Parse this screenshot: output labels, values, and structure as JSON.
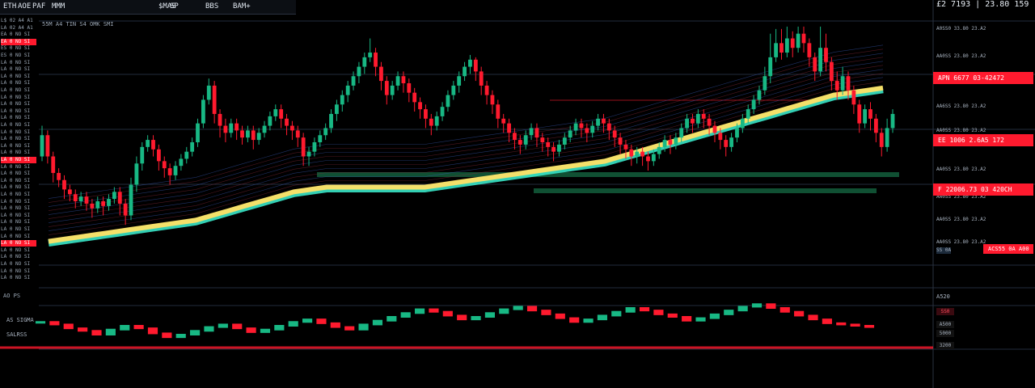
{
  "toolbar": {
    "items": [
      "ETH",
      "AOE",
      "PAF",
      "MMM",
      "$MAS",
      "SP",
      "BBS",
      "BAM+"
    ]
  },
  "header_row": "55M A4   TIN S4 OMK SMI",
  "top_right_readout": "£2 7193 | 23.80  159",
  "watchlist": [
    "L$ 02 A4 A1",
    "LA 02 A4 A1",
    "EA 0 NO SI",
    "EA 0 NO SI",
    "ES 0 NO SI",
    "ES 0 NO SI",
    "LA 0 NO SI",
    "LA 0 NO SI",
    "LA 0 NO SI",
    "LA 0 NO SI",
    "LA 0 NO SI",
    "LA 0 NO SI",
    "LA 0 NO SI",
    "LA 0 NO SI",
    "LA 0 NO SI",
    "LA 0 NO SI",
    "LA 0 NO SI",
    "LA 0 NO SI",
    "LA 0 NO SI",
    "LA 0 NO SI",
    "LA 0 NO SI",
    "LA 0 NO SI",
    "LA 0 NO SI",
    "LA 0 NO SI",
    "LA 0 NO SI",
    "LA 0 NO SI",
    "LA 0 NO SI",
    "LA 0 NO SI",
    "LA 0 NO SI",
    "LA 0 NO SI",
    "LA 0 NO SI",
    "LA 0 NO SI",
    "LA 0 NO SI",
    "LA 0 NO SI",
    "LA 0 NO SI",
    "LA 0 NO SI",
    "LA 0 NO SI",
    "LA 0 NO SI"
  ],
  "watch_highlight_rows": [
    3,
    20,
    32
  ],
  "axis_labels": [
    "A0SS0 33.80 23.A2",
    "AA0SS 23.80 23.A2",
    "AA6SS 23.80 23.A2",
    "AA0SS 23.80 23.A2",
    "AA0SS 23.80 23.A2",
    "AA0SS 23.80 23.A2",
    "AA0SS 23.80 23.A2",
    "AA0SS 23.80 23.A2"
  ],
  "axis_tags": [
    "APN 6677 03-42472",
    "EE 1006 2.6A5  172",
    "F 22006.73 03 420CH",
    "ACS55 0A A00"
  ],
  "axis_small_tag": "SS 0A",
  "sub_left": "AO PS",
  "sub_labels": [
    "AS SIGMA",
    "SALRSS",
    "A520"
  ],
  "sub_tags": [
    "SS0",
    "A500",
    "5000",
    "3200"
  ],
  "colors": {
    "bull": "#18b884",
    "bear": "#ff1a2e",
    "ribbon_yellow": "#ffe066",
    "ribbon_cyan": "#39e6c8",
    "band_green": "#135e3c",
    "grid": "#3a4a66"
  },
  "chart_data": {
    "type": "candlestick",
    "title": "",
    "xlabel": "",
    "ylabel": "",
    "ylim": [
      0,
      100
    ],
    "candles": [
      [
        44,
        53,
        42,
        57
      ],
      [
        53,
        44,
        41,
        55
      ],
      [
        44,
        37,
        33,
        46
      ],
      [
        37,
        34,
        31,
        39
      ],
      [
        34,
        30,
        26,
        36
      ],
      [
        30,
        28,
        25,
        32
      ],
      [
        28,
        25,
        22,
        30
      ],
      [
        25,
        27,
        23,
        29
      ],
      [
        27,
        24,
        21,
        29
      ],
      [
        24,
        22,
        18,
        26
      ],
      [
        22,
        25,
        20,
        27
      ],
      [
        25,
        23,
        19,
        27
      ],
      [
        23,
        26,
        21,
        28
      ],
      [
        26,
        29,
        24,
        31
      ],
      [
        29,
        24,
        19,
        31
      ],
      [
        24,
        19,
        15,
        26
      ],
      [
        19,
        32,
        17,
        35
      ],
      [
        32,
        41,
        29,
        44
      ],
      [
        41,
        48,
        38,
        50
      ],
      [
        48,
        51,
        46,
        53
      ],
      [
        51,
        47,
        44,
        53
      ],
      [
        47,
        42,
        38,
        49
      ],
      [
        42,
        39,
        35,
        44
      ],
      [
        39,
        36,
        32,
        41
      ],
      [
        36,
        40,
        34,
        42
      ],
      [
        40,
        43,
        38,
        45
      ],
      [
        43,
        46,
        41,
        48
      ],
      [
        46,
        50,
        44,
        52
      ],
      [
        50,
        58,
        48,
        60
      ],
      [
        58,
        68,
        56,
        70
      ],
      [
        68,
        74,
        66,
        77
      ],
      [
        74,
        62,
        58,
        76
      ],
      [
        62,
        57,
        52,
        64
      ],
      [
        57,
        54,
        50,
        60
      ],
      [
        54,
        58,
        52,
        60
      ],
      [
        58,
        55,
        51,
        60
      ],
      [
        55,
        52,
        49,
        57
      ],
      [
        52,
        55,
        50,
        57
      ],
      [
        55,
        51,
        47,
        57
      ],
      [
        51,
        54,
        49,
        56
      ],
      [
        54,
        57,
        52,
        59
      ],
      [
        57,
        61,
        55,
        63
      ],
      [
        61,
        64,
        59,
        66
      ],
      [
        64,
        60,
        56,
        66
      ],
      [
        60,
        57,
        53,
        62
      ],
      [
        57,
        55,
        51,
        59
      ],
      [
        55,
        52,
        48,
        57
      ],
      [
        52,
        44,
        40,
        54
      ],
      [
        44,
        46,
        40,
        48
      ],
      [
        46,
        50,
        44,
        52
      ],
      [
        50,
        53,
        48,
        55
      ],
      [
        53,
        56,
        51,
        58
      ],
      [
        56,
        62,
        54,
        64
      ],
      [
        62,
        66,
        59,
        68
      ],
      [
        66,
        70,
        63,
        72
      ],
      [
        70,
        74,
        67,
        76
      ],
      [
        74,
        78,
        72,
        80
      ],
      [
        78,
        82,
        75,
        84
      ],
      [
        82,
        86,
        79,
        88
      ],
      [
        86,
        88,
        84,
        94
      ],
      [
        88,
        82,
        78,
        90
      ],
      [
        82,
        76,
        72,
        84
      ],
      [
        76,
        70,
        66,
        78
      ],
      [
        70,
        74,
        68,
        76
      ],
      [
        74,
        78,
        72,
        80
      ],
      [
        78,
        75,
        71,
        80
      ],
      [
        75,
        71,
        67,
        77
      ],
      [
        71,
        67,
        63,
        73
      ],
      [
        67,
        64,
        60,
        69
      ],
      [
        64,
        60,
        56,
        66
      ],
      [
        60,
        57,
        53,
        62
      ],
      [
        57,
        61,
        55,
        63
      ],
      [
        61,
        65,
        59,
        67
      ],
      [
        65,
        70,
        63,
        72
      ],
      [
        70,
        74,
        68,
        76
      ],
      [
        74,
        78,
        71,
        80
      ],
      [
        78,
        82,
        76,
        84
      ],
      [
        82,
        85,
        79,
        87
      ],
      [
        85,
        80,
        76,
        86
      ],
      [
        80,
        74,
        70,
        82
      ],
      [
        74,
        70,
        66,
        76
      ],
      [
        70,
        66,
        62,
        72
      ],
      [
        66,
        60,
        56,
        68
      ],
      [
        60,
        58,
        54,
        62
      ],
      [
        58,
        54,
        50,
        60
      ],
      [
        54,
        51,
        47,
        56
      ],
      [
        51,
        49,
        45,
        53
      ],
      [
        49,
        53,
        47,
        55
      ],
      [
        53,
        56,
        51,
        58
      ],
      [
        56,
        52,
        48,
        58
      ],
      [
        52,
        50,
        46,
        54
      ],
      [
        50,
        48,
        44,
        52
      ],
      [
        48,
        46,
        42,
        50
      ],
      [
        46,
        49,
        44,
        51
      ],
      [
        49,
        52,
        47,
        54
      ],
      [
        52,
        55,
        50,
        57
      ],
      [
        55,
        58,
        53,
        60
      ],
      [
        58,
        56,
        52,
        60
      ],
      [
        56,
        54,
        50,
        58
      ],
      [
        54,
        57,
        52,
        59
      ],
      [
        57,
        60,
        55,
        62
      ],
      [
        60,
        58,
        54,
        62
      ],
      [
        58,
        55,
        51,
        60
      ],
      [
        55,
        52,
        48,
        57
      ],
      [
        52,
        49,
        45,
        54
      ],
      [
        49,
        47,
        43,
        51
      ],
      [
        47,
        44,
        40,
        49
      ],
      [
        44,
        46,
        41,
        48
      ],
      [
        46,
        44,
        40,
        48
      ],
      [
        44,
        42,
        38,
        46
      ],
      [
        42,
        45,
        40,
        47
      ],
      [
        45,
        48,
        43,
        50
      ],
      [
        48,
        51,
        46,
        53
      ],
      [
        51,
        49,
        45,
        53
      ],
      [
        49,
        52,
        47,
        54
      ],
      [
        52,
        56,
        50,
        58
      ],
      [
        56,
        60,
        54,
        62
      ],
      [
        60,
        58,
        54,
        62
      ],
      [
        58,
        62,
        56,
        64
      ],
      [
        62,
        60,
        56,
        64
      ],
      [
        60,
        57,
        53,
        62
      ],
      [
        57,
        54,
        50,
        59
      ],
      [
        54,
        51,
        47,
        56
      ],
      [
        51,
        48,
        44,
        53
      ],
      [
        48,
        52,
        46,
        54
      ],
      [
        52,
        56,
        50,
        58
      ],
      [
        56,
        60,
        54,
        62
      ],
      [
        60,
        64,
        58,
        66
      ],
      [
        64,
        68,
        62,
        70
      ],
      [
        68,
        72,
        66,
        74
      ],
      [
        72,
        78,
        70,
        82
      ],
      [
        78,
        86,
        75,
        96
      ],
      [
        86,
        92,
        84,
        98
      ],
      [
        92,
        88,
        85,
        98
      ],
      [
        88,
        94,
        86,
        99
      ],
      [
        94,
        90,
        86,
        97
      ],
      [
        90,
        96,
        88,
        99
      ],
      [
        96,
        92,
        88,
        99
      ],
      [
        92,
        86,
        82,
        94
      ],
      [
        86,
        80,
        76,
        88
      ],
      [
        80,
        90,
        78,
        99
      ],
      [
        90,
        84,
        80,
        96
      ],
      [
        84,
        76,
        72,
        86
      ],
      [
        76,
        72,
        68,
        80
      ],
      [
        72,
        78,
        70,
        82
      ],
      [
        78,
        72,
        68,
        80
      ],
      [
        72,
        66,
        62,
        74
      ],
      [
        66,
        58,
        54,
        68
      ],
      [
        58,
        64,
        56,
        66
      ],
      [
        64,
        60,
        55,
        67
      ],
      [
        60,
        54,
        50,
        62
      ],
      [
        54,
        48,
        44,
        56
      ],
      [
        48,
        56,
        46,
        60
      ],
      [
        56,
        62,
        54,
        64
      ]
    ],
    "moving_average": [
      8,
      9,
      10,
      11,
      12,
      13,
      14,
      15,
      16,
      17,
      19,
      21,
      23,
      25,
      27,
      29,
      30,
      31,
      31,
      31,
      31,
      31,
      31,
      31,
      32,
      33,
      34,
      35,
      36,
      37,
      38,
      39,
      40,
      41,
      42,
      44,
      46,
      48,
      50,
      52,
      54,
      56,
      58,
      60,
      62,
      64,
      66,
      68,
      70,
      71,
      72,
      73
    ],
    "subpanel_values": [
      62,
      60,
      57,
      55,
      52,
      56,
      59,
      57,
      53,
      50,
      52,
      55,
      58,
      60,
      57,
      54,
      56,
      59,
      62,
      64,
      61,
      58,
      56,
      60,
      63,
      66,
      69,
      72,
      70,
      67,
      64,
      66,
      69,
      72,
      74,
      71,
      68,
      65,
      62,
      64,
      67,
      70,
      73,
      71,
      68,
      66,
      63,
      65,
      68,
      71,
      74,
      76,
      73,
      70,
      67,
      64,
      61,
      60,
      59,
      58
    ]
  }
}
